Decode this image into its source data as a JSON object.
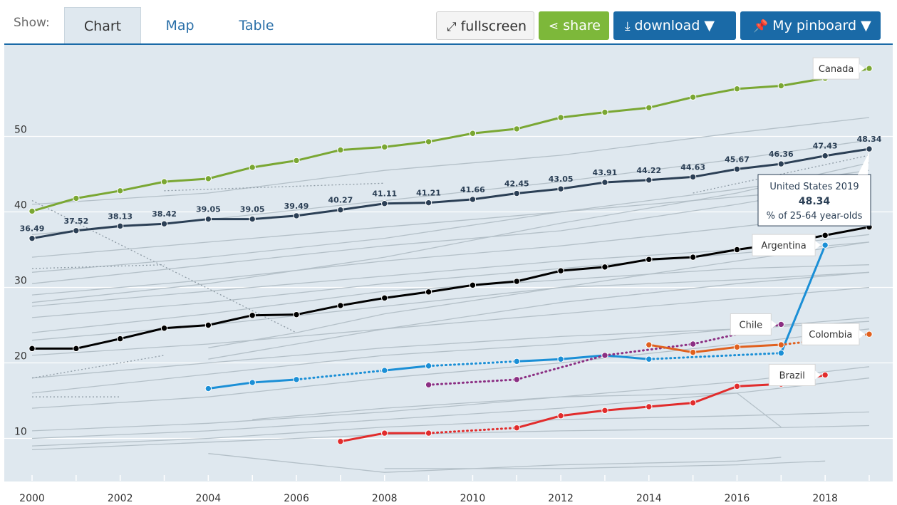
{
  "toolbar": {
    "show_label": "Show:",
    "tabs": [
      "Chart",
      "Map",
      "Table"
    ],
    "fullscreen_label": "fullscreen",
    "share_label": "share",
    "download_label": "download ▼",
    "pinboard_label": "My pinboard ▼"
  },
  "colors": {
    "plot_bg": "#dfe8ef",
    "grid": "#ffffff",
    "other_countries": "#b4c0c8",
    "canada": "#7aa733",
    "united_states": "#2b3f55",
    "oecd": "#000000",
    "argentina": "#1b8fd6",
    "chile": "#8b2f83",
    "colombia": "#e0601e",
    "brazil": "#e12c2c"
  },
  "tooltip": {
    "title": "United States 2019",
    "value": "48.34",
    "unit": "% of 25-64 year-olds"
  },
  "chart_data": {
    "type": "line",
    "xlim": [
      2000,
      2019
    ],
    "ylim": [
      5,
      60
    ],
    "x_ticks": [
      2000,
      2002,
      2004,
      2006,
      2008,
      2010,
      2012,
      2014,
      2016,
      2018
    ],
    "y_ticks": [
      10,
      20,
      30,
      40,
      50
    ],
    "series": [
      {
        "name": "Canada",
        "color_key": "canada",
        "label": true,
        "x": [
          2000,
          2001,
          2002,
          2003,
          2004,
          2005,
          2006,
          2007,
          2008,
          2009,
          2010,
          2011,
          2012,
          2013,
          2014,
          2015,
          2016,
          2017,
          2018,
          2019
        ],
        "values": [
          40.1,
          41.8,
          42.8,
          44.0,
          44.4,
          45.9,
          46.8,
          48.2,
          48.6,
          49.3,
          50.4,
          51.0,
          52.5,
          53.2,
          53.8,
          55.2,
          56.3,
          56.7,
          57.7,
          59.0
        ]
      },
      {
        "color_key": "united_states",
        "show_values": true,
        "x": [
          2000,
          2001,
          2002,
          2003,
          2004,
          2005,
          2006,
          2007,
          2008,
          2009,
          2010,
          2011,
          2012,
          2013,
          2014,
          2015,
          2016,
          2017,
          2018,
          2019
        ],
        "values": [
          36.49,
          37.52,
          38.13,
          38.42,
          39.05,
          39.05,
          39.49,
          40.27,
          41.11,
          41.21,
          41.66,
          42.45,
          43.05,
          43.91,
          44.22,
          44.63,
          45.67,
          46.36,
          47.43,
          48.34
        ]
      },
      {
        "color_key": "oecd",
        "x": [
          2000,
          2001,
          2002,
          2003,
          2004,
          2005,
          2006,
          2007,
          2008,
          2009,
          2010,
          2011,
          2012,
          2013,
          2014,
          2015,
          2016,
          2017,
          2018,
          2019
        ],
        "values": [
          21.9,
          21.9,
          23.2,
          24.6,
          25.0,
          26.3,
          26.4,
          27.6,
          28.6,
          29.4,
          30.3,
          30.8,
          32.2,
          32.7,
          33.7,
          34.0,
          35.0,
          35.8,
          36.9,
          38.0
        ]
      },
      {
        "name": "Argentina",
        "color_key": "argentina",
        "label": true,
        "x": [
          2004,
          2005,
          2006,
          2008,
          2009,
          2011,
          2012,
          2013,
          2014,
          2017,
          2018
        ],
        "values": [
          16.6,
          17.4,
          17.8,
          19.0,
          19.6,
          20.2,
          20.5,
          21.0,
          20.5,
          21.3,
          35.6
        ],
        "dotted_after": [
          2006,
          2009,
          2014
        ]
      },
      {
        "name": "Chile",
        "color_key": "chile",
        "label": true,
        "x": [
          2009,
          2011,
          2013,
          2015,
          2017
        ],
        "values": [
          17.1,
          17.8,
          21.0,
          22.5,
          25.1
        ],
        "dotted_after": [
          2009,
          2011,
          2013,
          2015
        ]
      },
      {
        "name": "Colombia",
        "color_key": "colombia",
        "label": true,
        "x": [
          2014,
          2015,
          2016,
          2017,
          2019
        ],
        "values": [
          22.4,
          21.4,
          22.1,
          22.4,
          23.8
        ],
        "dotted_after": [
          2017
        ]
      },
      {
        "name": "Brazil",
        "color_key": "brazil",
        "label": true,
        "x": [
          2007,
          2008,
          2009,
          2011,
          2012,
          2013,
          2014,
          2015,
          2016,
          2017,
          2018
        ],
        "values": [
          9.6,
          10.7,
          10.7,
          11.4,
          13.0,
          13.7,
          14.2,
          14.7,
          16.9,
          17.2,
          18.4
        ],
        "dotted_after": [
          2009
        ]
      }
    ],
    "background_series": [
      {
        "x": [
          2000,
          2004,
          2008,
          2012,
          2016,
          2019
        ],
        "values": [
          29.0,
          31.0,
          33.5,
          35.5,
          38.0,
          40.0
        ]
      },
      {
        "x": [
          2000,
          2004,
          2008,
          2012,
          2016,
          2019
        ],
        "values": [
          26.0,
          28.0,
          30.5,
          32.5,
          34.5,
          36.0
        ]
      },
      {
        "x": [
          2000,
          2004,
          2008,
          2012,
          2016,
          2019
        ],
        "values": [
          24.0,
          26.5,
          29.5,
          31.0,
          32.5,
          33.0
        ]
      },
      {
        "x": [
          2000,
          2004,
          2008,
          2012,
          2016,
          2019
        ],
        "values": [
          23.0,
          25.0,
          27.5,
          30.0,
          31.0,
          32.0
        ]
      },
      {
        "x": [
          2000,
          2004,
          2008,
          2012,
          2016,
          2019
        ],
        "values": [
          30.5,
          33.0,
          35.5,
          37.5,
          41.0,
          44.0
        ]
      },
      {
        "x": [
          2000,
          2004,
          2008,
          2012,
          2016,
          2019
        ],
        "values": [
          32.0,
          34.0,
          36.5,
          40.0,
          43.0,
          45.5
        ]
      },
      {
        "x": [
          2000,
          2004,
          2008,
          2012,
          2016,
          2019
        ],
        "values": [
          28.0,
          30.5,
          34.0,
          38.5,
          42.5,
          46.5
        ]
      },
      {
        "x": [
          2000,
          2004,
          2008,
          2012,
          2016,
          2019
        ],
        "values": [
          18.0,
          20.0,
          22.0,
          23.5,
          24.5,
          25.5
        ]
      },
      {
        "x": [
          2000,
          2004,
          2008,
          2012,
          2016,
          2019
        ],
        "values": [
          14.0,
          15.5,
          18.0,
          20.0,
          22.5,
          24.5
        ]
      },
      {
        "x": [
          2000,
          2004,
          2008,
          2012,
          2016,
          2019
        ],
        "values": [
          16.0,
          18.5,
          21.0,
          22.5,
          24.5,
          26.0
        ]
      },
      {
        "x": [
          2000,
          2004,
          2008,
          2012,
          2016,
          2019
        ],
        "values": [
          11.0,
          12.0,
          13.5,
          15.5,
          17.5,
          19.5
        ]
      },
      {
        "x": [
          2000,
          2004,
          2008,
          2012,
          2016,
          2019
        ],
        "values": [
          10.0,
          11.0,
          12.5,
          14.0,
          16.0,
          18.0
        ]
      },
      {
        "x": [
          2000,
          2004,
          2008,
          2012,
          2016,
          2019
        ],
        "values": [
          9.0,
          10.0,
          11.5,
          12.5,
          13.0,
          13.5
        ]
      },
      {
        "x": [
          2000,
          2004,
          2008,
          2012,
          2016,
          2019
        ],
        "values": [
          8.5,
          9.5,
          10.5,
          11.0,
          11.3,
          11.7
        ]
      },
      {
        "x": [
          2000,
          2004,
          2008,
          2012,
          2016,
          2019
        ],
        "values": [
          21.0,
          22.5,
          24.5,
          26.5,
          28.5,
          30.0
        ]
      },
      {
        "x": [
          2000,
          2004,
          2008,
          2012,
          2016,
          2019
        ],
        "values": [
          27.5,
          29.5,
          31.5,
          33.5,
          35.0,
          37.0
        ]
      },
      {
        "x": [
          2000,
          2004,
          2008,
          2012,
          2016,
          2019
        ],
        "values": [
          34.0,
          36.0,
          38.0,
          40.0,
          42.0,
          43.5
        ]
      },
      {
        "x": [
          2000,
          2004,
          2008,
          2012,
          2016,
          2019
        ],
        "values": [
          37.0,
          39.0,
          41.5,
          44.0,
          47.0,
          49.5
        ]
      },
      {
        "x": [
          2000,
          2004,
          2008,
          2012,
          2016,
          2019
        ],
        "values": [
          41.0,
          42.5,
          45.5,
          47.5,
          50.5,
          52.5
        ]
      },
      {
        "x": [
          2004,
          2008,
          2012,
          2016,
          2017
        ],
        "values": [
          8.0,
          5.5,
          6.5,
          7.0,
          7.5
        ]
      },
      {
        "x": [
          2008,
          2012,
          2016,
          2018
        ],
        "values": [
          6.0,
          6.0,
          6.5,
          7.0
        ]
      },
      {
        "x": [
          2005,
          2008,
          2012,
          2016,
          2017
        ],
        "values": [
          12.5,
          14.0,
          15.5,
          16.0,
          11.5
        ]
      },
      {
        "x": [
          2004,
          2006,
          2008,
          2012,
          2016,
          2019
        ],
        "values": [
          22.0,
          24.0,
          26.5,
          30.0,
          33.5,
          36.0
        ]
      },
      {
        "x": [
          2004,
          2006,
          2008,
          2012,
          2016,
          2019
        ],
        "values": [
          20.5,
          22.5,
          24.5,
          28.0,
          30.5,
          32.0
        ]
      }
    ],
    "dotted_series": [
      {
        "x": [
          2000,
          2006
        ],
        "values": [
          41.5,
          24.0
        ]
      },
      {
        "x": [
          2000,
          2003
        ],
        "values": [
          32.5,
          33.0
        ]
      },
      {
        "x": [
          2000,
          2002
        ],
        "values": [
          15.5,
          15.5
        ]
      },
      {
        "x": [
          2003,
          2008
        ],
        "values": [
          42.8,
          43.8
        ]
      },
      {
        "x": [
          2000,
          2003
        ],
        "values": [
          18.0,
          21.0
        ]
      },
      {
        "x": [
          2015,
          2019
        ],
        "values": [
          42.5,
          47.5
        ]
      }
    ]
  }
}
